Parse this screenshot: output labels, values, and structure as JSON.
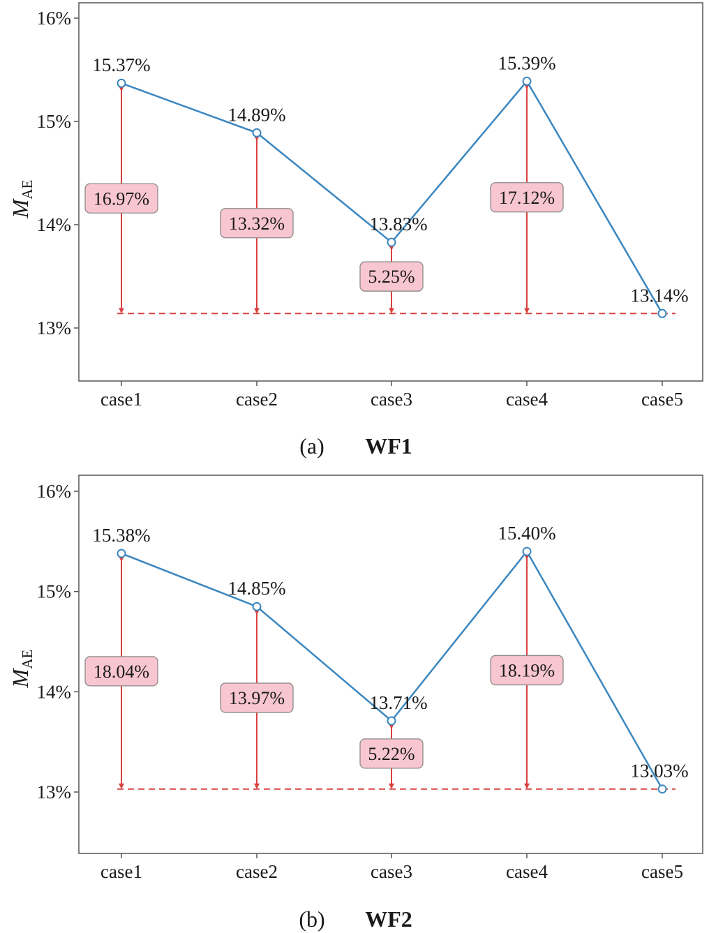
{
  "chart_data": [
    {
      "type": "line",
      "panel_label": "(a)",
      "panel_title": "WF1",
      "ylabel_main": "M",
      "ylabel_sub": "AE",
      "categories": [
        "case1",
        "case2",
        "case3",
        "case4",
        "case5"
      ],
      "yticks": [
        "13%",
        "14%",
        "15%",
        "16%"
      ],
      "ylim": [
        12.5,
        16.1
      ],
      "series": [
        {
          "values": [
            15.37,
            14.89,
            13.83,
            15.39,
            13.14
          ],
          "color": "#3a86c0"
        }
      ],
      "value_labels": [
        "15.37%",
        "14.89%",
        "13.83%",
        "15.39%",
        "13.14%"
      ],
      "reference_line": 13.14,
      "reference_color": "#d9413f",
      "improvements": [
        "16.97%",
        "13.32%",
        "5.25%",
        "17.12%"
      ],
      "improvement_box_color": "#f8c6d0"
    },
    {
      "type": "line",
      "panel_label": "(b)",
      "panel_title": "WF2",
      "ylabel_main": "M",
      "ylabel_sub": "AE",
      "categories": [
        "case1",
        "case2",
        "case3",
        "case4",
        "case5"
      ],
      "yticks": [
        "13%",
        "14%",
        "15%",
        "16%"
      ],
      "ylim": [
        12.5,
        16.1
      ],
      "series": [
        {
          "values": [
            15.38,
            14.85,
            13.71,
            15.4,
            13.03
          ],
          "color": "#3a86c0"
        }
      ],
      "value_labels": [
        "15.38%",
        "14.85%",
        "13.71%",
        "15.40%",
        "13.03%"
      ],
      "reference_line": 13.03,
      "reference_color": "#d9413f",
      "improvements": [
        "18.04%",
        "13.97%",
        "5.22%",
        "18.19%"
      ],
      "improvement_box_color": "#f8c6d0"
    }
  ]
}
